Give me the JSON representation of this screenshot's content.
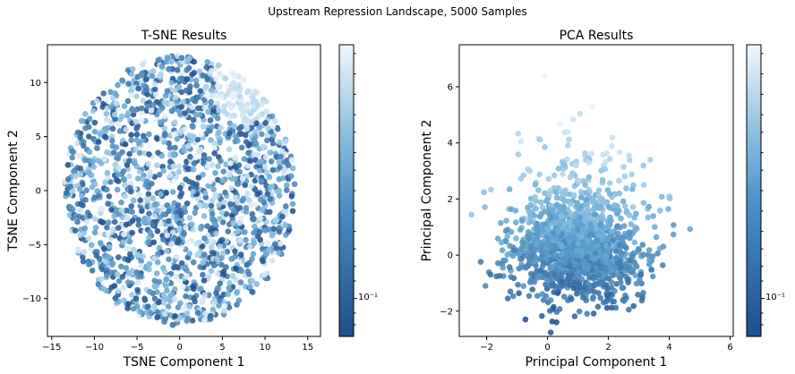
{
  "suptitle": "Upstream Repression Landscape, 5000 Samples",
  "colors": {
    "cmap_dark": "#1f4e8c",
    "cmap_mid": "#6aaed6",
    "cmap_light": "#eef4fb",
    "frame": "#000000",
    "background": "#ffffff"
  },
  "chart_data": [
    {
      "type": "scatter",
      "title": "T-SNE Results",
      "xlabel": "TSNE Component 1",
      "ylabel": "TSNE Component 2",
      "xlim": [
        -15.5,
        16.5
      ],
      "ylim": [
        -13.5,
        13.5
      ],
      "xticks": [
        -15,
        -10,
        -5,
        0,
        5,
        10,
        15
      ],
      "yticks": [
        -10,
        -5,
        0,
        5,
        10
      ],
      "shape": "disc",
      "center": [
        0,
        0
      ],
      "radius": [
        13.5,
        12.5
      ],
      "light_region": {
        "center": [
          7.5,
          9.5
        ],
        "radius": 3.5
      },
      "n_points": 1800,
      "colorbar": {
        "scale": "log",
        "label": "10⁻¹",
        "label_position": 0.87
      },
      "grid": false
    },
    {
      "type": "scatter",
      "title": "PCA Results",
      "xlabel": "Principal Component 1",
      "ylabel": "Principal Component 2",
      "xlim": [
        -2.9,
        6.1
      ],
      "ylim": [
        -2.9,
        7.5
      ],
      "xticks": [
        -2,
        0,
        2,
        4,
        6
      ],
      "yticks": [
        -2,
        0,
        2,
        4,
        6
      ],
      "shape": "blob",
      "center": [
        1.0,
        0.2
      ],
      "spread": [
        1.1,
        0.9
      ],
      "n_points": 1400,
      "colorbar": {
        "scale": "log",
        "label": "10⁻¹",
        "label_position": 0.87
      },
      "grid": false
    }
  ]
}
